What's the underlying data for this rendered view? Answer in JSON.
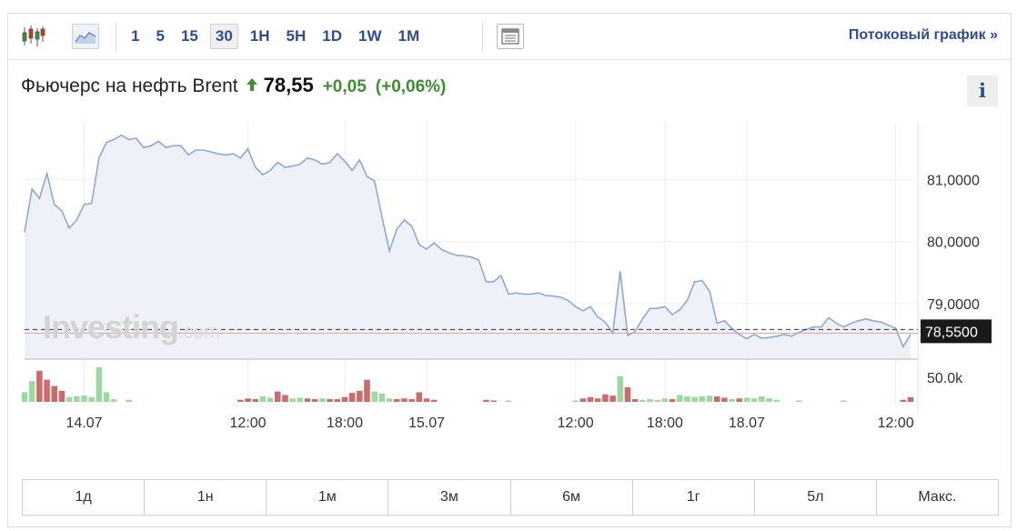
{
  "toolbar": {
    "intervals": [
      "1",
      "5",
      "15",
      "30",
      "1H",
      "5H",
      "1D",
      "1W",
      "1M"
    ],
    "active_interval": "30",
    "streaming_link": "Потоковый график »"
  },
  "quote": {
    "name": "Фьючерс на нефть Brent",
    "price": "78,55",
    "change": "+0,05",
    "change_pct": "(+0,06%)",
    "direction": "up"
  },
  "info_label": "i",
  "watermark": {
    "brand": "Investing",
    "suffix": ".com"
  },
  "ranges": [
    "1д",
    "1н",
    "1м",
    "3м",
    "6м",
    "1г",
    "5л",
    "Макс."
  ],
  "colors": {
    "line": "#8fa9d3",
    "area": "#eef1f8",
    "up_volume": "#9fd7a3",
    "down_volume": "#c76d6d",
    "price_tag": "#1a1a1a",
    "accent": "#2f4d8f",
    "positive": "#3d8e2f"
  },
  "chart_data": {
    "type": "area",
    "ylim": [
      78.1,
      81.95
    ],
    "y_ticks": [
      {
        "value": 81.0,
        "label": "81,0000"
      },
      {
        "value": 80.0,
        "label": "80,0000"
      },
      {
        "value": 79.0,
        "label": "79,0000"
      }
    ],
    "last_price": {
      "value": 78.55,
      "label": "78,5500"
    },
    "x_ticks": [
      {
        "index": 8,
        "label": "14.07"
      },
      {
        "index": 30,
        "label": "12:00"
      },
      {
        "index": 43,
        "label": "18:00"
      },
      {
        "index": 54,
        "label": "15.07"
      },
      {
        "index": 74,
        "label": "12:00"
      },
      {
        "index": 86,
        "label": "18:00"
      },
      {
        "index": 97,
        "label": "18.07"
      },
      {
        "index": 117,
        "label": "12:00"
      }
    ],
    "n_points": 120,
    "price_points": [
      [
        0,
        80.15
      ],
      [
        1,
        80.85
      ],
      [
        2,
        80.7
      ],
      [
        3,
        81.1
      ],
      [
        4,
        80.6
      ],
      [
        5,
        80.5
      ],
      [
        6,
        80.22
      ],
      [
        7,
        80.35
      ],
      [
        8,
        80.6
      ],
      [
        9,
        80.62
      ],
      [
        10,
        81.35
      ],
      [
        11,
        81.6
      ],
      [
        12,
        81.65
      ],
      [
        13,
        81.72
      ],
      [
        14,
        81.65
      ],
      [
        15,
        81.67
      ],
      [
        16,
        81.52
      ],
      [
        17,
        81.55
      ],
      [
        18,
        81.62
      ],
      [
        19,
        81.52
      ],
      [
        20,
        81.55
      ],
      [
        21,
        81.55
      ],
      [
        22,
        81.4
      ],
      [
        23,
        81.48
      ],
      [
        24,
        81.48
      ],
      [
        25,
        81.45
      ],
      [
        26,
        81.42
      ],
      [
        27,
        81.4
      ],
      [
        28,
        81.42
      ],
      [
        29,
        81.35
      ],
      [
        30,
        81.5
      ],
      [
        31,
        81.2
      ],
      [
        32,
        81.08
      ],
      [
        33,
        81.15
      ],
      [
        34,
        81.28
      ],
      [
        35,
        81.2
      ],
      [
        36,
        81.22
      ],
      [
        37,
        81.25
      ],
      [
        38,
        81.35
      ],
      [
        39,
        81.32
      ],
      [
        40,
        81.25
      ],
      [
        41,
        81.28
      ],
      [
        42,
        81.42
      ],
      [
        43,
        81.3
      ],
      [
        44,
        81.15
      ],
      [
        45,
        81.32
      ],
      [
        46,
        81.05
      ],
      [
        47,
        80.98
      ],
      [
        48,
        80.4
      ],
      [
        49,
        79.85
      ],
      [
        50,
        80.2
      ],
      [
        51,
        80.35
      ],
      [
        52,
        80.25
      ],
      [
        53,
        79.95
      ],
      [
        54,
        79.88
      ],
      [
        55,
        79.98
      ],
      [
        56,
        79.87
      ],
      [
        57,
        79.82
      ],
      [
        58,
        79.78
      ],
      [
        59,
        79.77
      ],
      [
        60,
        79.75
      ],
      [
        61,
        79.7
      ],
      [
        62,
        79.35
      ],
      [
        63,
        79.35
      ],
      [
        64,
        79.45
      ],
      [
        65,
        79.15
      ],
      [
        66,
        79.17
      ],
      [
        67,
        79.15
      ],
      [
        68,
        79.15
      ],
      [
        69,
        79.17
      ],
      [
        70,
        79.13
      ],
      [
        71,
        79.12
      ],
      [
        72,
        79.1
      ],
      [
        73,
        79.05
      ],
      [
        74,
        78.95
      ],
      [
        75,
        78.88
      ],
      [
        76,
        78.95
      ],
      [
        77,
        78.78
      ],
      [
        78,
        78.7
      ],
      [
        79,
        78.52
      ],
      [
        80,
        79.52
      ],
      [
        81,
        78.48
      ],
      [
        82,
        78.55
      ],
      [
        83,
        78.75
      ],
      [
        84,
        78.92
      ],
      [
        85,
        78.92
      ],
      [
        86,
        78.95
      ],
      [
        87,
        78.82
      ],
      [
        88,
        78.9
      ],
      [
        89,
        79.05
      ],
      [
        90,
        79.35
      ],
      [
        91,
        79.37
      ],
      [
        92,
        79.2
      ],
      [
        93,
        78.68
      ],
      [
        94,
        78.72
      ],
      [
        95,
        78.6
      ],
      [
        96,
        78.5
      ],
      [
        97,
        78.43
      ],
      [
        98,
        78.5
      ],
      [
        99,
        78.44
      ],
      [
        100,
        78.45
      ],
      [
        101,
        78.47
      ],
      [
        102,
        78.5
      ],
      [
        103,
        78.47
      ],
      [
        104,
        78.53
      ],
      [
        105,
        78.58
      ],
      [
        106,
        78.62
      ],
      [
        107,
        78.62
      ],
      [
        108,
        78.77
      ],
      [
        109,
        78.68
      ],
      [
        110,
        78.62
      ],
      [
        111,
        78.68
      ],
      [
        112,
        78.72
      ],
      [
        113,
        78.75
      ],
      [
        114,
        78.72
      ],
      [
        115,
        78.7
      ],
      [
        116,
        78.65
      ],
      [
        117,
        78.6
      ],
      [
        118,
        78.3
      ],
      [
        119,
        78.5
      ]
    ],
    "volume_max_label": "50.0k",
    "volume_max": 50000,
    "volume_bars": [
      {
        "index": 0,
        "value": 14000,
        "dir": "up"
      },
      {
        "index": 1,
        "value": 30000,
        "dir": "up"
      },
      {
        "index": 2,
        "value": 45000,
        "dir": "down"
      },
      {
        "index": 3,
        "value": 32000,
        "dir": "down"
      },
      {
        "index": 4,
        "value": 23000,
        "dir": "down"
      },
      {
        "index": 5,
        "value": 16000,
        "dir": "down"
      },
      {
        "index": 6,
        "value": 7000,
        "dir": "up"
      },
      {
        "index": 7,
        "value": 8000,
        "dir": "up"
      },
      {
        "index": 8,
        "value": 9000,
        "dir": "up"
      },
      {
        "index": 9,
        "value": 7000,
        "dir": "up"
      },
      {
        "index": 10,
        "value": 50000,
        "dir": "up"
      },
      {
        "index": 11,
        "value": 14000,
        "dir": "up"
      },
      {
        "index": 12,
        "value": 4000,
        "dir": "up"
      },
      {
        "index": 14,
        "value": 3000,
        "dir": "up"
      },
      {
        "index": 29,
        "value": 3000,
        "dir": "down"
      },
      {
        "index": 30,
        "value": 5000,
        "dir": "down"
      },
      {
        "index": 31,
        "value": 4000,
        "dir": "down"
      },
      {
        "index": 32,
        "value": 8000,
        "dir": "up"
      },
      {
        "index": 33,
        "value": 6000,
        "dir": "up"
      },
      {
        "index": 34,
        "value": 15000,
        "dir": "down"
      },
      {
        "index": 35,
        "value": 10000,
        "dir": "down"
      },
      {
        "index": 36,
        "value": 5000,
        "dir": "up"
      },
      {
        "index": 37,
        "value": 6000,
        "dir": "up"
      },
      {
        "index": 38,
        "value": 5000,
        "dir": "down"
      },
      {
        "index": 39,
        "value": 4000,
        "dir": "down"
      },
      {
        "index": 40,
        "value": 5000,
        "dir": "up"
      },
      {
        "index": 41,
        "value": 4000,
        "dir": "down"
      },
      {
        "index": 42,
        "value": 4000,
        "dir": "down"
      },
      {
        "index": 43,
        "value": 7000,
        "dir": "down"
      },
      {
        "index": 44,
        "value": 13000,
        "dir": "down"
      },
      {
        "index": 45,
        "value": 16000,
        "dir": "down"
      },
      {
        "index": 46,
        "value": 32000,
        "dir": "down"
      },
      {
        "index": 47,
        "value": 15000,
        "dir": "up"
      },
      {
        "index": 48,
        "value": 12000,
        "dir": "up"
      },
      {
        "index": 49,
        "value": 5000,
        "dir": "up"
      },
      {
        "index": 50,
        "value": 4000,
        "dir": "down"
      },
      {
        "index": 51,
        "value": 5000,
        "dir": "down"
      },
      {
        "index": 52,
        "value": 4000,
        "dir": "down"
      },
      {
        "index": 53,
        "value": 14000,
        "dir": "down"
      },
      {
        "index": 54,
        "value": 5000,
        "dir": "down"
      },
      {
        "index": 55,
        "value": 3000,
        "dir": "down"
      },
      {
        "index": 62,
        "value": 3000,
        "dir": "down"
      },
      {
        "index": 63,
        "value": 2000,
        "dir": "down"
      },
      {
        "index": 65,
        "value": 2000,
        "dir": "up"
      },
      {
        "index": 74,
        "value": 2000,
        "dir": "up"
      },
      {
        "index": 75,
        "value": 5000,
        "dir": "down"
      },
      {
        "index": 76,
        "value": 7000,
        "dir": "down"
      },
      {
        "index": 77,
        "value": 5000,
        "dir": "down"
      },
      {
        "index": 78,
        "value": 11000,
        "dir": "down"
      },
      {
        "index": 79,
        "value": 9000,
        "dir": "down"
      },
      {
        "index": 80,
        "value": 37000,
        "dir": "up"
      },
      {
        "index": 81,
        "value": 21000,
        "dir": "down"
      },
      {
        "index": 82,
        "value": 4000,
        "dir": "down"
      },
      {
        "index": 83,
        "value": 3000,
        "dir": "up"
      },
      {
        "index": 84,
        "value": 4000,
        "dir": "up"
      },
      {
        "index": 85,
        "value": 3000,
        "dir": "up"
      },
      {
        "index": 86,
        "value": 5000,
        "dir": "up"
      },
      {
        "index": 87,
        "value": 4000,
        "dir": "down"
      },
      {
        "index": 88,
        "value": 10000,
        "dir": "up"
      },
      {
        "index": 89,
        "value": 8000,
        "dir": "up"
      },
      {
        "index": 90,
        "value": 7000,
        "dir": "up"
      },
      {
        "index": 91,
        "value": 8000,
        "dir": "up"
      },
      {
        "index": 92,
        "value": 9000,
        "dir": "up"
      },
      {
        "index": 93,
        "value": 8000,
        "dir": "down"
      },
      {
        "index": 94,
        "value": 6000,
        "dir": "down"
      },
      {
        "index": 95,
        "value": 4000,
        "dir": "up"
      },
      {
        "index": 96,
        "value": 5000,
        "dir": "down"
      },
      {
        "index": 97,
        "value": 6000,
        "dir": "up"
      },
      {
        "index": 98,
        "value": 5000,
        "dir": "up"
      },
      {
        "index": 99,
        "value": 8000,
        "dir": "up"
      },
      {
        "index": 100,
        "value": 5000,
        "dir": "up"
      },
      {
        "index": 101,
        "value": 3000,
        "dir": "up"
      },
      {
        "index": 104,
        "value": 2000,
        "dir": "up"
      },
      {
        "index": 110,
        "value": 2000,
        "dir": "up"
      },
      {
        "index": 118,
        "value": 3000,
        "dir": "down"
      },
      {
        "index": 119,
        "value": 7000,
        "dir": "down"
      }
    ]
  }
}
